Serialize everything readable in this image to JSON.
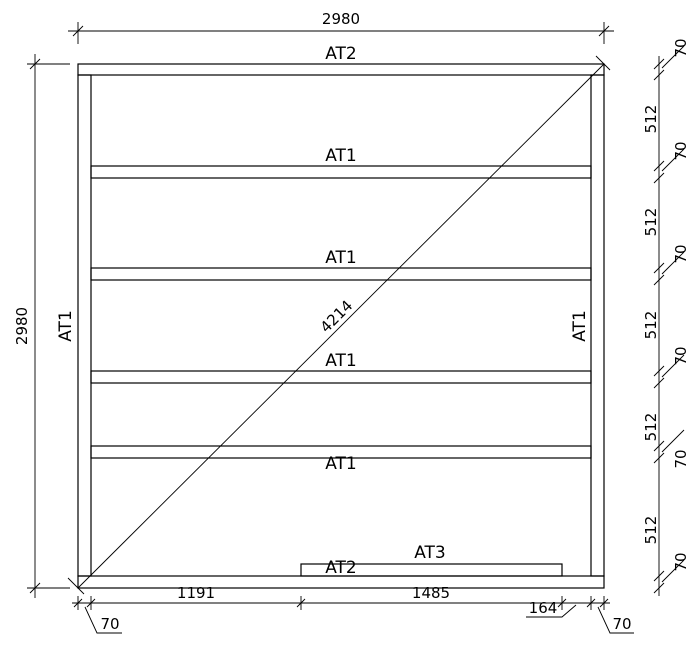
{
  "labels": {
    "top_plate": "AT2",
    "bottom_plate": "AT2",
    "left_stud": "AT1",
    "right_stud": "AT1",
    "noggin_1": "AT1",
    "noggin_2": "AT1",
    "noggin_3": "AT1",
    "noggin_4": "AT1",
    "opening_piece": "AT3"
  },
  "dimensions": {
    "overall_width": "2980",
    "overall_height": "2980",
    "diagonal": "4214",
    "bottom_left": "1191",
    "bottom_middle": "1485",
    "bottom_left_end": "70",
    "bottom_right_offset": "164",
    "bottom_right_end": "70",
    "right_spacings": [
      "512",
      "512",
      "512",
      "512",
      "512"
    ],
    "right_plates": [
      "70",
      "70",
      "70",
      "70",
      "70",
      "70"
    ]
  }
}
